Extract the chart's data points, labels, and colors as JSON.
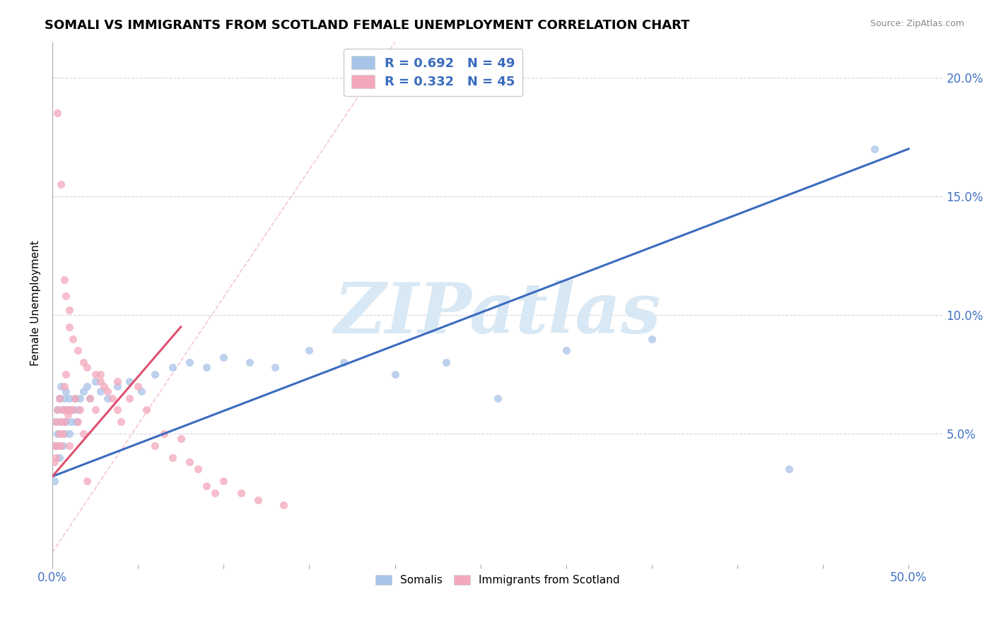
{
  "title": "SOMALI VS IMMIGRANTS FROM SCOTLAND FEMALE UNEMPLOYMENT CORRELATION CHART",
  "source": "Source: ZipAtlas.com",
  "ylabel": "Female Unemployment",
  "xlim": [
    0.0,
    0.52
  ],
  "ylim": [
    -0.005,
    0.215
  ],
  "yticks": [
    0.0,
    0.05,
    0.1,
    0.15,
    0.2
  ],
  "yticklabels": [
    "",
    "5.0%",
    "10.0%",
    "15.0%",
    "20.0%"
  ],
  "xtick_positions": [
    0.0,
    0.05,
    0.1,
    0.15,
    0.2,
    0.25,
    0.3,
    0.35,
    0.4,
    0.45,
    0.5
  ],
  "R_somali": 0.692,
  "N_somali": 49,
  "R_scotland": 0.332,
  "N_scotland": 45,
  "somali_color": "#a8c4e8",
  "scotland_color": "#f4a8bc",
  "trend_somali_color": "#3a6bbf",
  "trend_scotland_color": "#e05070",
  "diag_color": "#f0b8c8",
  "watermark_text": "ZIPatlas",
  "watermark_color": "#d8e8f4",
  "legend_labels_bottom": [
    "Somalis",
    "Immigrants from Scotland"
  ],
  "somali_x": [
    0.001,
    0.002,
    0.002,
    0.003,
    0.003,
    0.004,
    0.004,
    0.005,
    0.005,
    0.006,
    0.006,
    0.007,
    0.007,
    0.008,
    0.008,
    0.009,
    0.01,
    0.01,
    0.011,
    0.012,
    0.013,
    0.014,
    0.015,
    0.016,
    0.018,
    0.02,
    0.022,
    0.025,
    0.028,
    0.032,
    0.038,
    0.045,
    0.052,
    0.06,
    0.07,
    0.08,
    0.09,
    0.1,
    0.115,
    0.13,
    0.15,
    0.17,
    0.2,
    0.23,
    0.26,
    0.3,
    0.35,
    0.43,
    0.48
  ],
  "somali_y": [
    0.03,
    0.045,
    0.055,
    0.05,
    0.06,
    0.04,
    0.065,
    0.055,
    0.07,
    0.045,
    0.06,
    0.05,
    0.065,
    0.055,
    0.068,
    0.06,
    0.05,
    0.065,
    0.055,
    0.06,
    0.065,
    0.055,
    0.06,
    0.065,
    0.068,
    0.07,
    0.065,
    0.072,
    0.068,
    0.065,
    0.07,
    0.072,
    0.068,
    0.075,
    0.078,
    0.08,
    0.078,
    0.082,
    0.08,
    0.078,
    0.085,
    0.08,
    0.075,
    0.08,
    0.065,
    0.085,
    0.09,
    0.035,
    0.17
  ],
  "scotland_x": [
    0.001,
    0.001,
    0.002,
    0.002,
    0.003,
    0.003,
    0.004,
    0.004,
    0.005,
    0.005,
    0.006,
    0.006,
    0.007,
    0.007,
    0.008,
    0.008,
    0.009,
    0.01,
    0.01,
    0.012,
    0.013,
    0.015,
    0.016,
    0.018,
    0.02,
    0.022,
    0.025,
    0.028,
    0.032,
    0.038,
    0.045,
    0.05,
    0.055,
    0.06,
    0.065,
    0.07,
    0.075,
    0.08,
    0.085,
    0.09,
    0.095,
    0.1,
    0.11,
    0.12,
    0.135
  ],
  "scotland_y": [
    0.038,
    0.045,
    0.04,
    0.055,
    0.045,
    0.06,
    0.05,
    0.065,
    0.045,
    0.055,
    0.05,
    0.06,
    0.055,
    0.07,
    0.06,
    0.075,
    0.058,
    0.045,
    0.06,
    0.06,
    0.065,
    0.055,
    0.06,
    0.05,
    0.03,
    0.065,
    0.06,
    0.075,
    0.068,
    0.072,
    0.065,
    0.07,
    0.06,
    0.045,
    0.05,
    0.04,
    0.048,
    0.038,
    0.035,
    0.028,
    0.025,
    0.03,
    0.025,
    0.022,
    0.02
  ],
  "scotland_outliers_x": [
    0.003,
    0.005,
    0.007,
    0.008,
    0.01,
    0.01,
    0.012,
    0.015,
    0.018,
    0.02,
    0.025,
    0.028,
    0.03,
    0.035,
    0.038,
    0.04
  ],
  "scotland_outliers_y": [
    0.185,
    0.155,
    0.115,
    0.108,
    0.102,
    0.095,
    0.09,
    0.085,
    0.08,
    0.078,
    0.075,
    0.072,
    0.07,
    0.065,
    0.06,
    0.055
  ],
  "trend_somali_x0": 0.0,
  "trend_somali_y0": 0.032,
  "trend_somali_x1": 0.5,
  "trend_somali_y1": 0.17,
  "trend_scotland_x0": 0.0,
  "trend_scotland_y0": 0.032,
  "trend_scotland_x1": 0.075,
  "trend_scotland_y1": 0.095
}
